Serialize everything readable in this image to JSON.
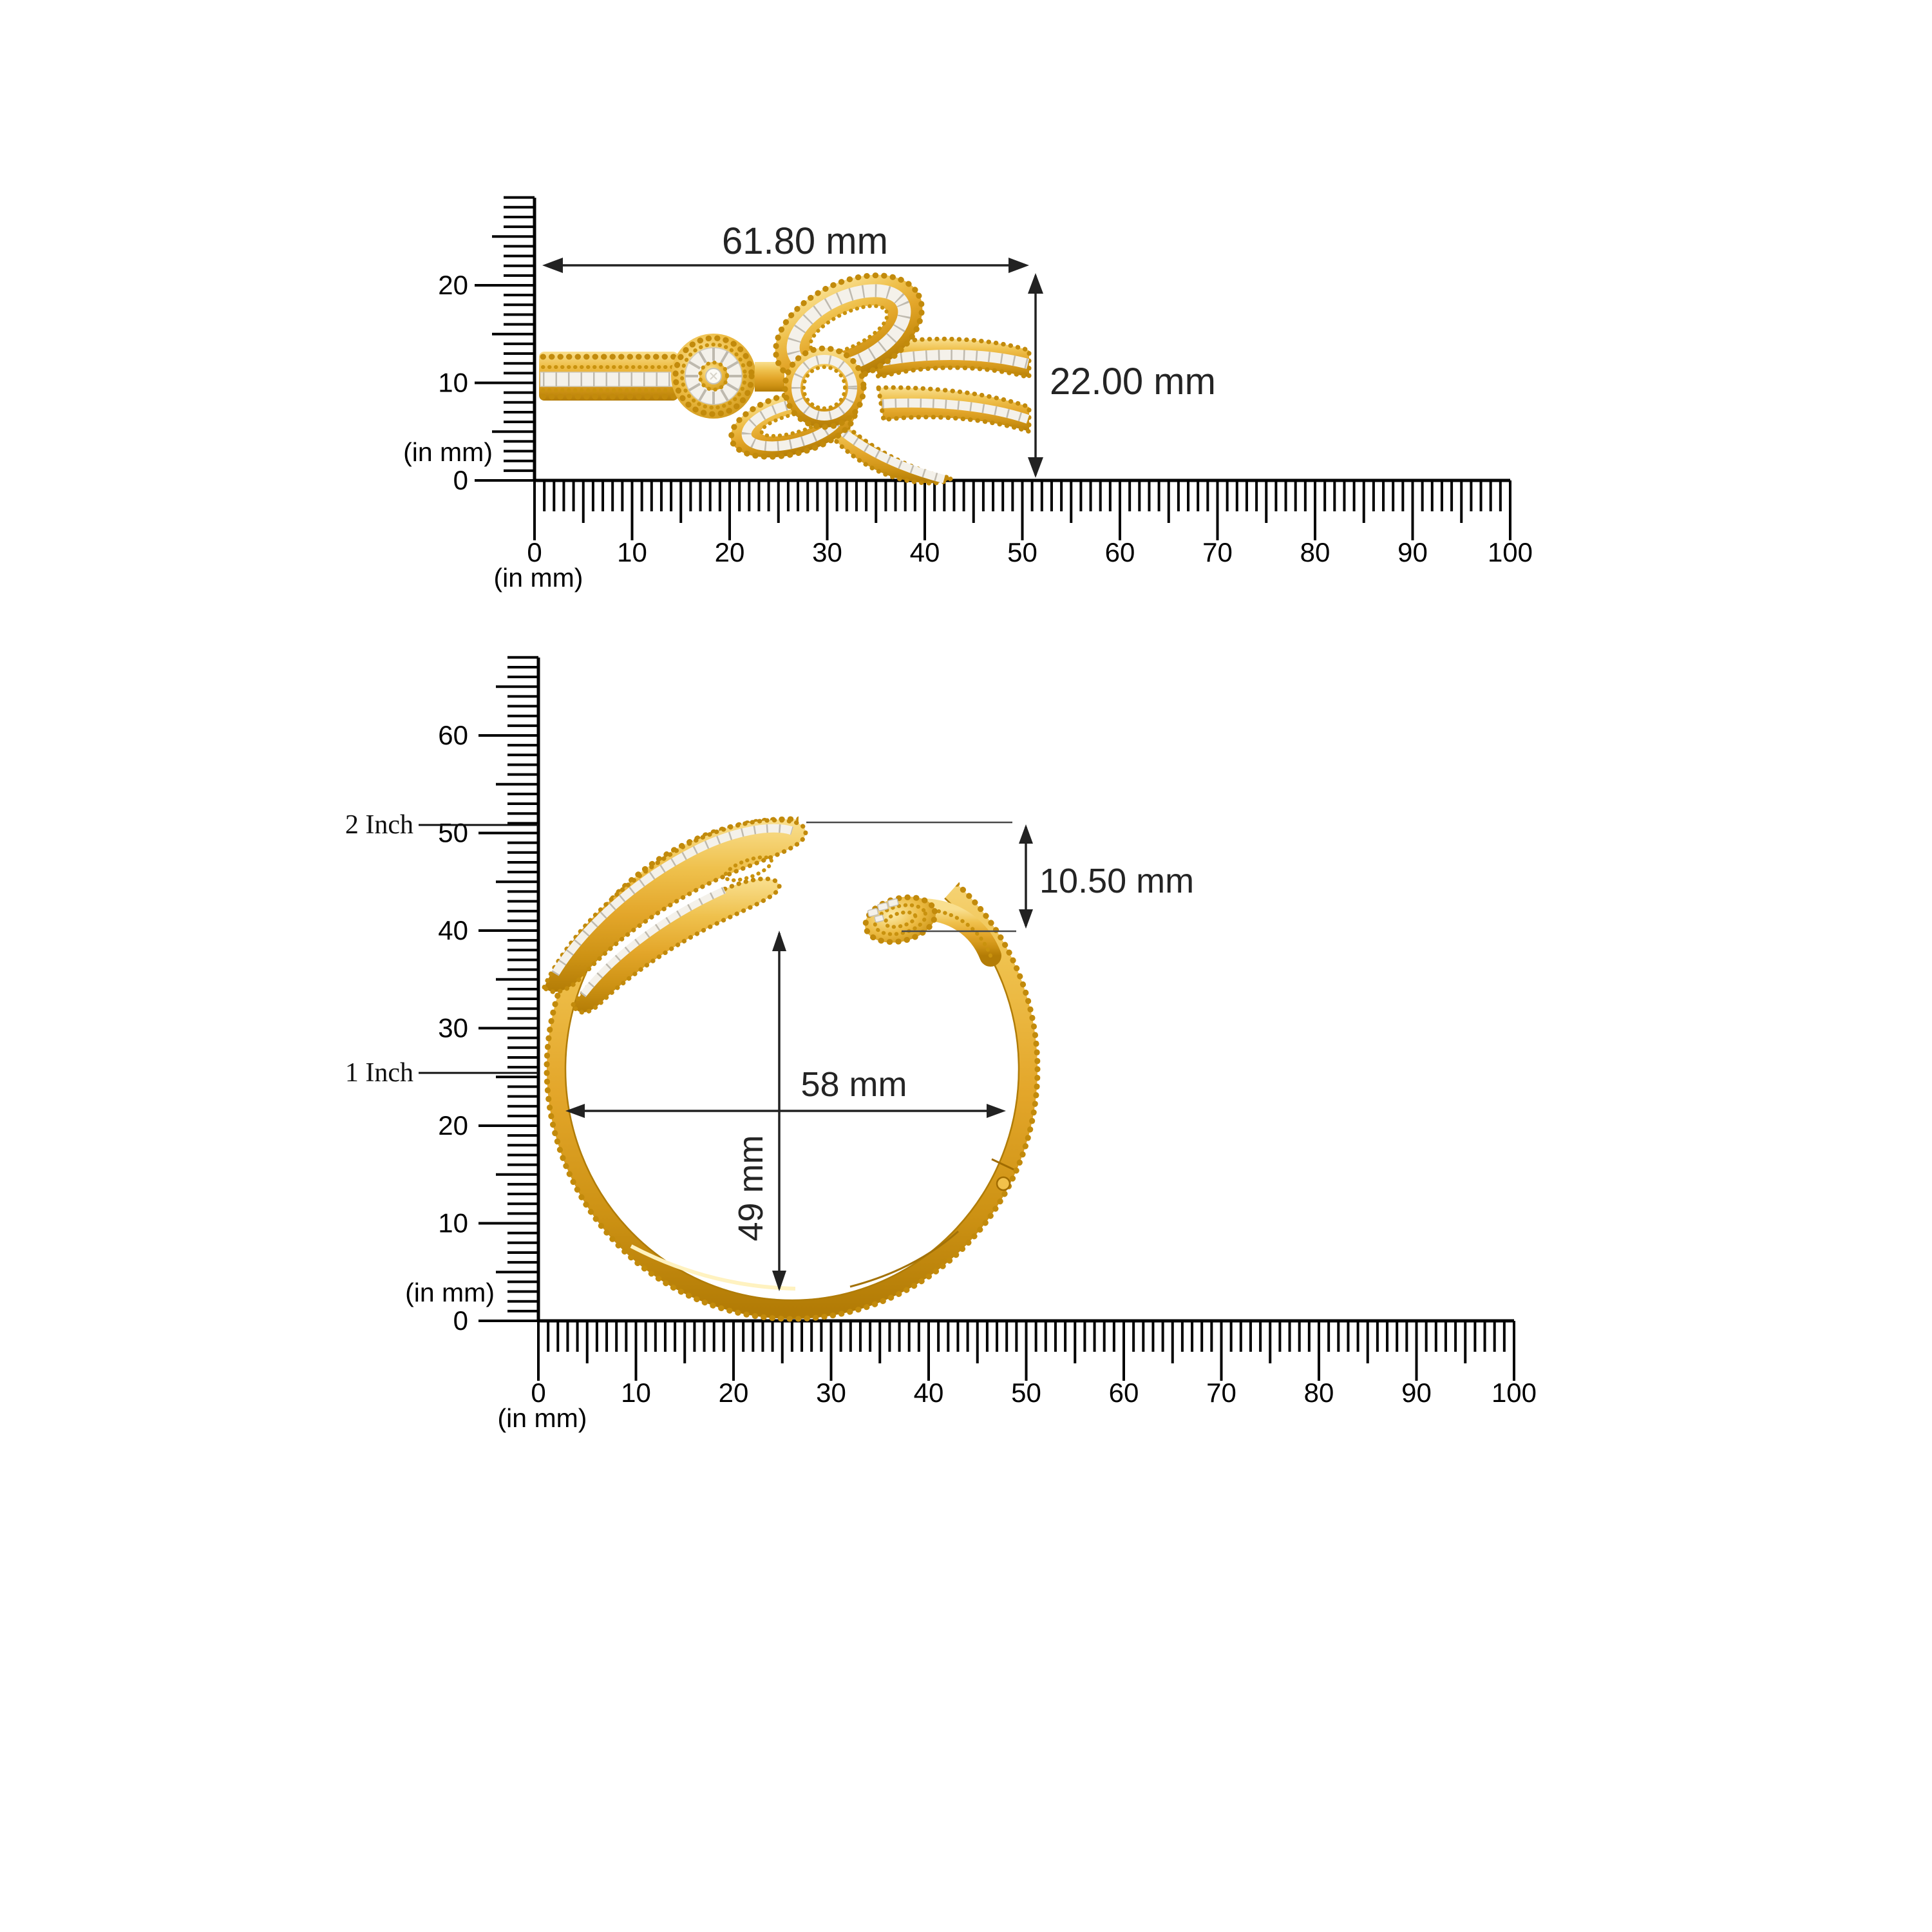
{
  "colors": {
    "gold_light": "#F9DF8F",
    "gold_mid": "#E3A62A",
    "gold_deep": "#B37C06",
    "bead_gold": "#C28A0B",
    "diamond_white": "#F4F1EA",
    "ruler_line": "#000000",
    "dimension_text": "#242424"
  },
  "side_view": {
    "description": "bangle side profile with diamond bow clasp",
    "width_dim": "61.80 mm",
    "height_dim": "22.00 mm",
    "rulers": {
      "vertical": {
        "unit": "(in mm)",
        "labels": [
          "0",
          "10",
          "20"
        ]
      },
      "horizontal": {
        "unit": "(in mm)",
        "labels": [
          "0",
          "10",
          "20",
          "30",
          "40",
          "50",
          "60",
          "70",
          "80",
          "90",
          "100"
        ]
      }
    }
  },
  "front_view": {
    "description": "open cuff bangle front view",
    "gap_dim": "10.50 mm",
    "diameter_dim": "58 mm",
    "height_dim": "49 mm",
    "rulers": {
      "vertical": {
        "unit": "(in mm)",
        "labels": [
          "0",
          "10",
          "20",
          "30",
          "40",
          "50",
          "60"
        ],
        "inch_markers": [
          {
            "text": "1 Inch",
            "mm": 25.4
          },
          {
            "text": "2 Inch",
            "mm": 50.8
          }
        ]
      },
      "horizontal": {
        "unit": "(in mm)",
        "labels": [
          "0",
          "10",
          "20",
          "30",
          "40",
          "50",
          "60",
          "70",
          "80",
          "90",
          "100"
        ]
      }
    }
  }
}
